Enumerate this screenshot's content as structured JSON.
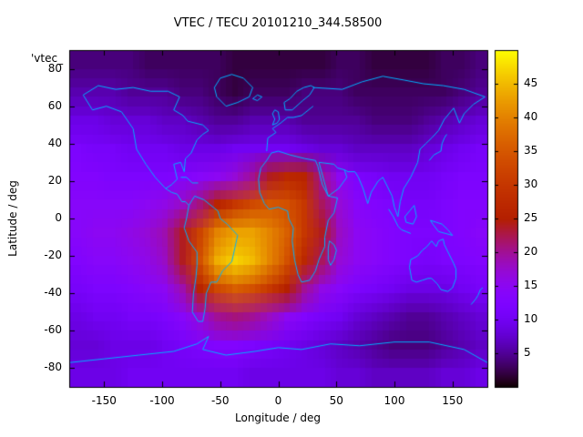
{
  "title": "VTEC / TECU 20101210_344.58500",
  "annotation": "'vtec_",
  "xlabel": "Longitude / deg",
  "ylabel": "Latitude / deg",
  "chart_data": {
    "type": "heatmap",
    "title": "VTEC / TECU 20101210_344.58500",
    "xlabel": "Longitude / deg",
    "ylabel": "Latitude / deg",
    "x_range": [
      -180,
      180
    ],
    "y_range": [
      -90,
      90
    ],
    "x_ticks": [
      -150,
      -100,
      -50,
      0,
      50,
      100,
      150
    ],
    "y_ticks": [
      -80,
      -60,
      -40,
      -20,
      0,
      20,
      40,
      60,
      80
    ],
    "colorbar": {
      "range": [
        0,
        50
      ],
      "ticks": [
        5,
        10,
        15,
        20,
        25,
        30,
        35,
        40,
        45
      ],
      "palette": "gnuplot pm3d rgbformulae 7,5,15 (black-purple-violet-red-orange-yellow)"
    },
    "grid": {
      "units": "TECU",
      "lon_start": -172.5,
      "lon_step": 15,
      "lat_start": 82.5,
      "lat_step": -15,
      "values": [
        [
          4,
          4,
          4,
          4,
          3,
          3,
          3,
          3,
          3,
          2,
          2,
          2,
          2,
          2,
          2,
          3,
          3,
          2,
          2,
          2,
          2,
          3,
          3,
          4
        ],
        [
          6,
          6,
          6,
          5,
          5,
          5,
          4,
          4,
          3,
          2,
          3,
          3,
          3,
          4,
          4,
          4,
          3,
          3,
          3,
          3,
          3,
          3,
          4,
          5
        ],
        [
          9,
          9,
          8,
          8,
          8,
          7,
          7,
          6,
          5,
          5,
          6,
          6,
          6,
          5,
          5,
          5,
          5,
          4,
          4,
          4,
          5,
          6,
          7,
          8
        ],
        [
          12,
          11,
          11,
          10,
          10,
          10,
          9,
          9,
          9,
          10,
          10,
          10,
          10,
          9,
          8,
          8,
          7,
          7,
          7,
          7,
          8,
          9,
          10,
          11
        ],
        [
          13,
          13,
          12,
          12,
          12,
          12,
          13,
          14,
          15,
          17,
          20,
          24,
          27,
          26,
          20,
          15,
          12,
          11,
          10,
          10,
          10,
          11,
          12,
          12
        ],
        [
          14,
          14,
          14,
          14,
          15,
          16,
          18,
          21,
          26,
          30,
          33,
          35,
          34,
          30,
          22,
          17,
          14,
          13,
          12,
          11,
          11,
          12,
          13,
          13
        ],
        [
          14,
          15,
          15,
          16,
          17,
          19,
          24,
          32,
          40,
          43,
          43,
          40,
          36,
          30,
          24,
          18,
          15,
          14,
          13,
          12,
          12,
          12,
          13,
          14
        ],
        [
          13,
          14,
          14,
          15,
          16,
          18,
          24,
          34,
          44,
          47,
          45,
          40,
          34,
          27,
          22,
          17,
          15,
          14,
          13,
          12,
          11,
          12,
          12,
          13
        ],
        [
          11,
          12,
          12,
          13,
          14,
          15,
          19,
          26,
          33,
          36,
          34,
          30,
          25,
          20,
          16,
          14,
          12,
          11,
          10,
          9,
          9,
          9,
          10,
          11
        ],
        [
          9,
          10,
          10,
          11,
          11,
          12,
          14,
          17,
          20,
          21,
          20,
          18,
          15,
          13,
          11,
          10,
          8,
          7,
          6,
          5,
          5,
          6,
          7,
          8
        ],
        [
          8,
          8,
          9,
          9,
          9,
          10,
          11,
          12,
          13,
          13,
          12,
          11,
          10,
          9,
          8,
          7,
          6,
          5,
          4,
          4,
          4,
          5,
          6,
          7
        ],
        [
          9,
          9,
          9,
          10,
          10,
          10,
          10,
          10,
          10,
          10,
          9,
          9,
          9,
          9,
          9,
          8,
          8,
          7,
          7,
          7,
          7,
          8,
          8,
          9
        ]
      ]
    },
    "coastlines": [
      [
        [
          -168,
          66
        ],
        [
          -160,
          58
        ],
        [
          -148,
          60
        ],
        [
          -135,
          57
        ],
        [
          -125,
          48
        ],
        [
          -122,
          37
        ],
        [
          -114,
          29
        ],
        [
          -106,
          22
        ],
        [
          -97,
          16
        ],
        [
          -92,
          18
        ],
        [
          -87,
          21
        ],
        [
          -90,
          29
        ],
        [
          -84,
          30
        ],
        [
          -81,
          25
        ],
        [
          -80,
          32
        ],
        [
          -75,
          35
        ],
        [
          -70,
          42
        ],
        [
          -65,
          45
        ],
        [
          -60,
          47
        ],
        [
          -65,
          50
        ],
        [
          -78,
          52
        ],
        [
          -82,
          55
        ],
        [
          -90,
          58
        ],
        [
          -85,
          65
        ],
        [
          -95,
          68
        ],
        [
          -110,
          68
        ],
        [
          -125,
          70
        ],
        [
          -140,
          69
        ],
        [
          -155,
          71
        ],
        [
          -168,
          66
        ]
      ],
      [
        [
          -97,
          16
        ],
        [
          -92,
          14
        ],
        [
          -87,
          13
        ],
        [
          -83,
          9
        ],
        [
          -80,
          9
        ],
        [
          -77,
          7
        ]
      ],
      [
        [
          -77,
          7
        ],
        [
          -79,
          0
        ],
        [
          -81,
          -5
        ],
        [
          -77,
          -12
        ],
        [
          -70,
          -18
        ],
        [
          -70,
          -25
        ],
        [
          -71,
          -32
        ],
        [
          -73,
          -40
        ],
        [
          -74,
          -50
        ],
        [
          -69,
          -55
        ],
        [
          -65,
          -55
        ],
        [
          -63,
          -48
        ],
        [
          -62,
          -40
        ],
        [
          -58,
          -34
        ],
        [
          -53,
          -34
        ],
        [
          -48,
          -28
        ],
        [
          -40,
          -23
        ],
        [
          -35,
          -9
        ],
        [
          -44,
          -3
        ],
        [
          -50,
          0
        ],
        [
          -52,
          4
        ],
        [
          -60,
          8
        ],
        [
          -64,
          10
        ],
        [
          -72,
          12
        ],
        [
          -77,
          7
        ]
      ],
      [
        [
          -45,
          60
        ],
        [
          -53,
          65
        ],
        [
          -55,
          70
        ],
        [
          -50,
          75
        ],
        [
          -40,
          77
        ],
        [
          -30,
          75
        ],
        [
          -22,
          70
        ],
        [
          -25,
          65
        ],
        [
          -35,
          62
        ],
        [
          -45,
          60
        ]
      ],
      [
        [
          -22,
          64
        ],
        [
          -18,
          66
        ],
        [
          -14,
          65
        ],
        [
          -18,
          63
        ],
        [
          -22,
          64
        ]
      ],
      [
        [
          -10,
          36
        ],
        [
          -9,
          43
        ],
        [
          -2,
          46
        ],
        [
          -5,
          48
        ],
        [
          2,
          51
        ],
        [
          8,
          54
        ],
        [
          13,
          54
        ],
        [
          20,
          55
        ],
        [
          28,
          59
        ],
        [
          30,
          60
        ]
      ],
      [
        [
          6,
          58
        ],
        [
          5,
          62
        ],
        [
          10,
          64
        ],
        [
          16,
          68
        ],
        [
          22,
          70
        ],
        [
          28,
          71
        ],
        [
          31,
          70
        ],
        [
          27,
          66
        ],
        [
          21,
          63
        ],
        [
          12,
          58
        ],
        [
          6,
          58
        ]
      ],
      [
        [
          -5,
          50
        ],
        [
          -3,
          53
        ],
        [
          -5,
          56
        ],
        [
          -3,
          58
        ],
        [
          0,
          57
        ],
        [
          1,
          53
        ],
        [
          -1,
          51
        ],
        [
          -5,
          50
        ]
      ],
      [
        [
          -6,
          35
        ],
        [
          -10,
          31
        ],
        [
          -15,
          27
        ],
        [
          -17,
          21
        ],
        [
          -16,
          14
        ],
        [
          -12,
          8
        ],
        [
          -8,
          5
        ],
        [
          0,
          6
        ],
        [
          8,
          4
        ],
        [
          9,
          0
        ],
        [
          13,
          -5
        ],
        [
          12,
          -12
        ],
        [
          14,
          -22
        ],
        [
          17,
          -30
        ],
        [
          20,
          -34
        ],
        [
          27,
          -33
        ],
        [
          32,
          -28
        ],
        [
          35,
          -22
        ],
        [
          40,
          -15
        ],
        [
          40,
          -10
        ],
        [
          43,
          -1
        ],
        [
          48,
          3
        ],
        [
          51,
          11
        ],
        [
          43,
          12
        ],
        [
          38,
          18
        ],
        [
          34,
          28
        ],
        [
          32,
          31
        ],
        [
          23,
          32
        ],
        [
          10,
          34
        ],
        [
          0,
          36
        ],
        [
          -6,
          35
        ]
      ],
      [
        [
          35,
          30
        ],
        [
          39,
          21
        ],
        [
          43,
          12
        ],
        [
          52,
          16
        ],
        [
          59,
          22
        ],
        [
          57,
          26
        ],
        [
          51,
          27
        ],
        [
          48,
          29
        ],
        [
          35,
          30
        ]
      ],
      [
        [
          30,
          70
        ],
        [
          55,
          69
        ],
        [
          72,
          73
        ],
        [
          90,
          76
        ],
        [
          108,
          74
        ],
        [
          125,
          72
        ],
        [
          142,
          71
        ],
        [
          160,
          69
        ],
        [
          178,
          65
        ],
        [
          168,
          61
        ],
        [
          160,
          56
        ],
        [
          156,
          51
        ],
        [
          151,
          59
        ],
        [
          143,
          53
        ],
        [
          138,
          47
        ],
        [
          132,
          43
        ],
        [
          127,
          40
        ],
        [
          122,
          37
        ],
        [
          120,
          30
        ],
        [
          114,
          22
        ],
        [
          108,
          16
        ],
        [
          105,
          9
        ],
        [
          103,
          1
        ],
        [
          100,
          6
        ],
        [
          98,
          12
        ],
        [
          94,
          17
        ],
        [
          90,
          22
        ],
        [
          86,
          20
        ],
        [
          80,
          14
        ],
        [
          77,
          8
        ],
        [
          73,
          16
        ],
        [
          69,
          22
        ],
        [
          66,
          25
        ],
        [
          60,
          25
        ],
        [
          57,
          26
        ]
      ],
      [
        [
          130,
          31
        ],
        [
          134,
          34
        ],
        [
          137,
          35
        ],
        [
          140,
          36
        ],
        [
          141,
          40
        ],
        [
          143,
          43
        ],
        [
          145,
          45
        ]
      ],
      [
        [
          95,
          5
        ],
        [
          99,
          1
        ],
        [
          103,
          -4
        ],
        [
          106,
          -6
        ],
        [
          110,
          -7
        ],
        [
          114,
          -8
        ]
      ],
      [
        [
          109,
          1
        ],
        [
          113,
          4
        ],
        [
          117,
          7
        ],
        [
          119,
          1
        ],
        [
          116,
          -3
        ],
        [
          110,
          -2
        ],
        [
          109,
          1
        ]
      ],
      [
        [
          131,
          -1
        ],
        [
          136,
          -2
        ],
        [
          141,
          -3
        ],
        [
          146,
          -6
        ],
        [
          150,
          -9
        ],
        [
          144,
          -8
        ],
        [
          138,
          -7
        ],
        [
          133,
          -3
        ],
        [
          131,
          -1
        ]
      ],
      [
        [
          114,
          -22
        ],
        [
          113,
          -26
        ],
        [
          115,
          -33
        ],
        [
          119,
          -34
        ],
        [
          124,
          -33
        ],
        [
          129,
          -32
        ],
        [
          132,
          -32
        ],
        [
          137,
          -35
        ],
        [
          140,
          -38
        ],
        [
          146,
          -39
        ],
        [
          150,
          -37
        ],
        [
          153,
          -32
        ],
        [
          153,
          -27
        ],
        [
          151,
          -24
        ],
        [
          147,
          -19
        ],
        [
          143,
          -14
        ],
        [
          142,
          -11
        ],
        [
          138,
          -12
        ],
        [
          136,
          -15
        ],
        [
          132,
          -12
        ],
        [
          128,
          -15
        ],
        [
          124,
          -17
        ],
        [
          120,
          -20
        ],
        [
          114,
          -22
        ]
      ],
      [
        [
          166,
          -46
        ],
        [
          170,
          -43
        ],
        [
          172,
          -41
        ],
        [
          174,
          -38
        ],
        [
          176,
          -37
        ]
      ],
      [
        [
          44,
          -12
        ],
        [
          48,
          -14
        ],
        [
          50,
          -17
        ],
        [
          48,
          -22
        ],
        [
          45,
          -25
        ],
        [
          43,
          -22
        ],
        [
          43,
          -16
        ],
        [
          44,
          -12
        ]
      ],
      [
        [
          -84,
          22
        ],
        [
          -79,
          22
        ],
        [
          -74,
          19
        ],
        [
          -69,
          19
        ]
      ],
      [
        [
          -180,
          -77
        ],
        [
          -150,
          -75
        ],
        [
          -120,
          -73
        ],
        [
          -90,
          -71
        ],
        [
          -70,
          -67
        ],
        [
          -60,
          -63
        ],
        [
          -65,
          -70
        ],
        [
          -45,
          -73
        ],
        [
          -20,
          -71
        ],
        [
          0,
          -69
        ],
        [
          20,
          -70
        ],
        [
          45,
          -67
        ],
        [
          70,
          -68
        ],
        [
          100,
          -66
        ],
        [
          130,
          -66
        ],
        [
          160,
          -70
        ],
        [
          180,
          -77
        ]
      ]
    ],
    "colors": {
      "coastline": "#00b0ff",
      "background": "#ffffff",
      "text": "#000000"
    }
  }
}
